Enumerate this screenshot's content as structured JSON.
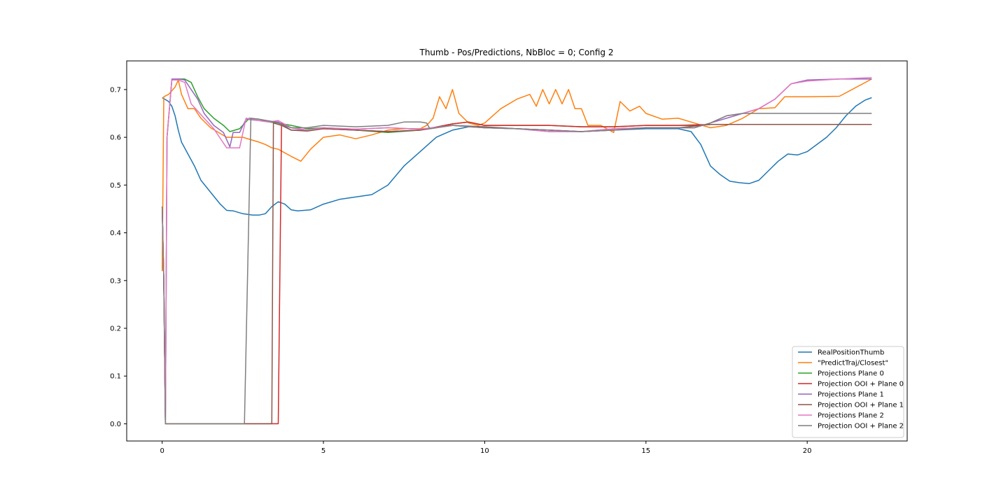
{
  "chart_data": {
    "type": "line",
    "title": "Thumb - Pos/Predictions, NbBloc = 0; Config 2",
    "xlabel": "",
    "ylabel": "",
    "xlim": [
      -1.1,
      23.1
    ],
    "ylim": [
      -0.036,
      0.76
    ],
    "xticks": [
      0,
      5,
      10,
      15,
      20
    ],
    "yticks": [
      0.0,
      0.1,
      0.2,
      0.3,
      0.4,
      0.5,
      0.6,
      0.7
    ],
    "xtick_labels": [
      "0",
      "5",
      "10",
      "15",
      "20"
    ],
    "ytick_labels": [
      "0.0",
      "0.1",
      "0.2",
      "0.3",
      "0.4",
      "0.5",
      "0.6",
      "0.7"
    ],
    "grid": false,
    "legend": "lower-right",
    "series": [
      {
        "name": "RealPositionThumb",
        "color": "#1f77b4",
        "x": [
          0,
          0.2,
          0.3,
          0.4,
          0.5,
          0.6,
          0.8,
          1.0,
          1.2,
          1.5,
          1.8,
          2.0,
          2.2,
          2.5,
          2.8,
          3.0,
          3.2,
          3.4,
          3.6,
          3.8,
          4.0,
          4.2,
          4.4,
          4.6,
          5.0,
          5.5,
          6.0,
          6.5,
          7.0,
          7.5,
          8.0,
          8.5,
          9.0,
          9.5,
          10.0,
          11.0,
          12.0,
          13.0,
          14.0,
          15.0,
          16.0,
          16.4,
          16.7,
          17.0,
          17.3,
          17.6,
          17.9,
          18.2,
          18.5,
          18.8,
          19.1,
          19.4,
          19.7,
          20.0,
          20.3,
          20.6,
          20.9,
          21.2,
          21.5,
          21.8,
          22.0
        ],
        "y": [
          0.683,
          0.675,
          0.665,
          0.645,
          0.615,
          0.59,
          0.565,
          0.54,
          0.51,
          0.485,
          0.46,
          0.447,
          0.446,
          0.44,
          0.437,
          0.437,
          0.44,
          0.455,
          0.465,
          0.46,
          0.448,
          0.446,
          0.447,
          0.448,
          0.46,
          0.47,
          0.475,
          0.48,
          0.5,
          0.54,
          0.57,
          0.6,
          0.615,
          0.622,
          0.62,
          0.618,
          0.615,
          0.612,
          0.615,
          0.618,
          0.618,
          0.612,
          0.585,
          0.54,
          0.522,
          0.508,
          0.505,
          0.503,
          0.51,
          0.53,
          0.55,
          0.565,
          0.563,
          0.57,
          0.585,
          0.6,
          0.62,
          0.645,
          0.665,
          0.678,
          0.683
        ]
      },
      {
        "name": "\"PredictTraj/Closest\"",
        "color": "#ff7f0e",
        "x": [
          0,
          0.05,
          0.2,
          0.4,
          0.5,
          0.6,
          0.8,
          1.0,
          1.2,
          1.5,
          2.0,
          2.5,
          3.0,
          3.2,
          3.4,
          3.6,
          4.0,
          4.3,
          4.6,
          5.0,
          5.5,
          6.0,
          6.5,
          7.0,
          7.5,
          8.0,
          8.2,
          8.4,
          8.6,
          8.8,
          9.0,
          9.2,
          9.5,
          9.8,
          10.0,
          10.5,
          11.0,
          11.4,
          11.6,
          11.8,
          12.0,
          12.2,
          12.4,
          12.6,
          12.8,
          13.0,
          13.2,
          13.6,
          14.0,
          14.2,
          14.5,
          14.8,
          15.0,
          15.5,
          16.0,
          16.5,
          17.0,
          17.5,
          18.0,
          18.5,
          19.0,
          19.3,
          19.6,
          20.0,
          21.0,
          22.0
        ],
        "y": [
          0.32,
          0.685,
          0.69,
          0.705,
          0.72,
          0.69,
          0.66,
          0.66,
          0.64,
          0.62,
          0.6,
          0.6,
          0.59,
          0.585,
          0.578,
          0.575,
          0.56,
          0.55,
          0.575,
          0.6,
          0.605,
          0.597,
          0.605,
          0.615,
          0.618,
          0.618,
          0.625,
          0.64,
          0.685,
          0.66,
          0.7,
          0.65,
          0.63,
          0.625,
          0.63,
          0.66,
          0.68,
          0.69,
          0.665,
          0.7,
          0.67,
          0.7,
          0.67,
          0.7,
          0.66,
          0.66,
          0.625,
          0.625,
          0.61,
          0.675,
          0.655,
          0.665,
          0.65,
          0.638,
          0.64,
          0.63,
          0.62,
          0.625,
          0.64,
          0.66,
          0.662,
          0.685,
          0.685,
          0.685,
          0.686,
          0.722
        ]
      },
      {
        "name": "Projections Plane 0",
        "color": "#2ca02c",
        "x": [
          0,
          0.05,
          0.1,
          0.15,
          0.3,
          0.5,
          0.7,
          0.9,
          1.1,
          1.3,
          1.6,
          1.9,
          2.1,
          2.4,
          2.7,
          3.0,
          3.3,
          3.6,
          4.0,
          4.5,
          5.0,
          6.0,
          7.0,
          8.0,
          9.0,
          9.5,
          10.0,
          11.0,
          12.0,
          13.0,
          14.0,
          15.0,
          16.0,
          16.5,
          17.0,
          18.0,
          19.0,
          20.0,
          21.0,
          22.0
        ],
        "y": [
          0.455,
          0.3,
          0.0,
          0.6,
          0.72,
          0.722,
          0.722,
          0.715,
          0.685,
          0.66,
          0.64,
          0.625,
          0.612,
          0.618,
          0.64,
          0.638,
          0.632,
          0.63,
          0.625,
          0.618,
          0.62,
          0.615,
          0.61,
          0.615,
          0.628,
          0.632,
          0.625,
          0.625,
          0.625,
          0.622,
          0.622,
          0.625,
          0.625,
          0.625,
          0.627,
          0.627,
          0.627,
          0.627,
          0.627,
          0.627
        ]
      },
      {
        "name": "Projection OOI + Plane 0",
        "color": "#d62728",
        "x": [
          0,
          0.05,
          0.1,
          3.6,
          3.7,
          4.0,
          4.5,
          5.0,
          6.0,
          7.0,
          8.0,
          9.0,
          9.5,
          10.0,
          11.0,
          12.0,
          13.0,
          14.0,
          15.0,
          16.0,
          17.0,
          18.0,
          19.0,
          20.0,
          21.0,
          22.0
        ],
        "y": [
          0.455,
          0.3,
          0.0,
          0.0,
          0.63,
          0.62,
          0.615,
          0.618,
          0.615,
          0.612,
          0.615,
          0.628,
          0.632,
          0.625,
          0.625,
          0.625,
          0.622,
          0.622,
          0.625,
          0.625,
          0.627,
          0.627,
          0.627,
          0.627,
          0.627,
          0.627
        ]
      },
      {
        "name": "Projections Plane 1",
        "color": "#9467bd",
        "x": [
          0,
          0.05,
          0.1,
          0.15,
          0.3,
          0.5,
          0.7,
          0.9,
          1.1,
          1.3,
          1.6,
          1.9,
          2.1,
          2.2,
          2.4,
          2.6,
          3.0,
          3.3,
          3.6,
          4.0,
          4.5,
          5.0,
          6.0,
          7.0,
          8.0,
          9.0,
          10.0,
          11.0,
          12.0,
          13.0,
          14.0,
          15.0,
          16.0,
          16.5,
          17.0,
          17.5,
          18.0,
          18.5,
          19.0,
          19.5,
          20.0,
          21.0,
          22.0
        ],
        "y": [
          0.455,
          0.3,
          0.0,
          0.6,
          0.722,
          0.722,
          0.72,
          0.7,
          0.68,
          0.65,
          0.625,
          0.61,
          0.58,
          0.61,
          0.61,
          0.638,
          0.635,
          0.632,
          0.632,
          0.615,
          0.615,
          0.62,
          0.617,
          0.62,
          0.617,
          0.625,
          0.62,
          0.618,
          0.612,
          0.612,
          0.618,
          0.62,
          0.62,
          0.62,
          0.63,
          0.64,
          0.65,
          0.66,
          0.68,
          0.712,
          0.72,
          0.722,
          0.722
        ]
      },
      {
        "name": "Projection OOI + Plane 1",
        "color": "#8c564b",
        "x": [
          0,
          0.05,
          0.1,
          3.4,
          3.45,
          3.7,
          4.0,
          4.5,
          5.0,
          6.0,
          7.0,
          8.0,
          9.0,
          10.0,
          11.0,
          12.0,
          13.0,
          14.0,
          15.0,
          16.0,
          17.0,
          18.0,
          19.0,
          20.0,
          21.0,
          22.0
        ],
        "y": [
          0.455,
          0.3,
          0.0,
          0.0,
          0.63,
          0.625,
          0.615,
          0.613,
          0.618,
          0.615,
          0.612,
          0.615,
          0.625,
          0.622,
          0.618,
          0.615,
          0.612,
          0.615,
          0.62,
          0.62,
          0.627,
          0.627,
          0.627,
          0.627,
          0.627,
          0.627
        ]
      },
      {
        "name": "Projections Plane 2",
        "color": "#e377c2",
        "x": [
          0,
          0.05,
          0.1,
          0.15,
          0.3,
          0.5,
          0.7,
          0.9,
          1.1,
          1.3,
          1.6,
          1.8,
          2.0,
          2.4,
          2.6,
          3.0,
          3.3,
          3.6,
          4.0,
          4.5,
          5.0,
          6.0,
          7.0,
          8.0,
          9.0,
          10.0,
          11.0,
          12.0,
          13.0,
          14.0,
          15.0,
          16.0,
          16.5,
          17.0,
          17.5,
          18.0,
          18.5,
          19.0,
          19.5,
          20.0,
          21.0,
          22.0
        ],
        "y": [
          0.455,
          0.3,
          0.0,
          0.6,
          0.72,
          0.72,
          0.715,
          0.67,
          0.655,
          0.64,
          0.618,
          0.598,
          0.578,
          0.578,
          0.64,
          0.635,
          0.632,
          0.635,
          0.62,
          0.615,
          0.62,
          0.617,
          0.62,
          0.617,
          0.625,
          0.62,
          0.618,
          0.612,
          0.612,
          0.618,
          0.62,
          0.62,
          0.62,
          0.63,
          0.645,
          0.65,
          0.66,
          0.68,
          0.712,
          0.718,
          0.722,
          0.725
        ]
      },
      {
        "name": "Projection OOI + Plane 2",
        "color": "#7f7f7f",
        "x": [
          0,
          0.05,
          0.1,
          2.55,
          2.75,
          3.0,
          3.5,
          4.0,
          4.5,
          5.0,
          6.0,
          7.0,
          7.5,
          8.0,
          8.2,
          8.3,
          9.0,
          10.0,
          11.0,
          12.0,
          13.0,
          14.0,
          15.0,
          16.0,
          16.5,
          17.0,
          17.5,
          18.0,
          19.0,
          20.0,
          21.0,
          22.0
        ],
        "y": [
          0.455,
          0.3,
          0.0,
          0.0,
          0.64,
          0.638,
          0.632,
          0.62,
          0.62,
          0.625,
          0.622,
          0.625,
          0.632,
          0.632,
          0.63,
          0.618,
          0.625,
          0.62,
          0.618,
          0.615,
          0.612,
          0.615,
          0.62,
          0.62,
          0.62,
          0.63,
          0.645,
          0.65,
          0.65,
          0.65,
          0.65,
          0.65
        ]
      }
    ]
  }
}
